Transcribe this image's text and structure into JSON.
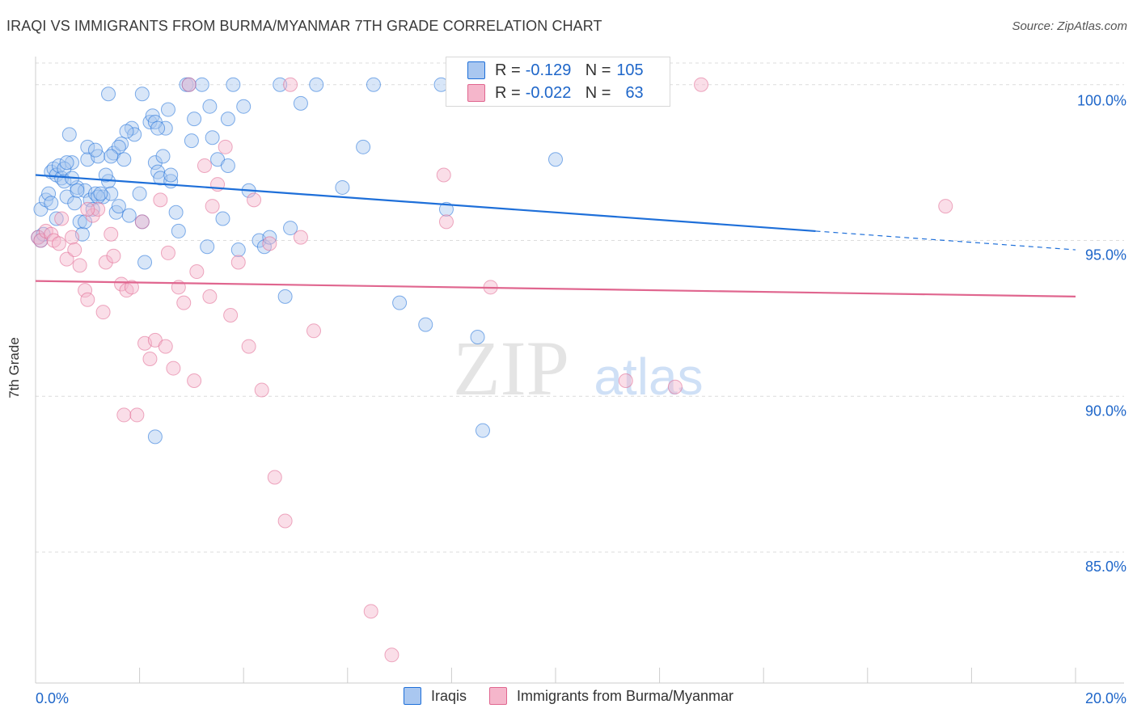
{
  "title": "IRAQI VS IMMIGRANTS FROM BURMA/MYANMAR 7TH GRADE CORRELATION CHART",
  "source": "Source: ZipAtlas.com",
  "watermark": {
    "zip": "ZIP",
    "atlas": "atlas"
  },
  "colors": {
    "blue": "#1e6fd9",
    "blue_fill": "#a9c7f0",
    "pink": "#e0668f",
    "pink_fill": "#f5b6cb",
    "value_text": "#1e66c9",
    "grid": "#dcdcdc"
  },
  "legend": {
    "rows": [
      {
        "r_label": "R =",
        "r_value": "-0.129",
        "n_label": "N =",
        "n_value": "105"
      },
      {
        "r_label": "R =",
        "r_value": "-0.022",
        "n_label": "N =",
        "n_value": "63"
      }
    ]
  },
  "chart_data": {
    "type": "scatter",
    "title": "IRAQI VS IMMIGRANTS FROM BURMA/MYANMAR 7TH GRADE CORRELATION CHART",
    "xlabel": "",
    "ylabel": "7th Grade",
    "xlim": [
      0,
      20
    ],
    "ylim": [
      80.8,
      100.9
    ],
    "x_tick_labels": [
      "0.0%",
      "20.0%"
    ],
    "y_ticks": [
      85,
      90,
      95,
      100
    ],
    "y_tick_labels": [
      "85.0%",
      "90.0%",
      "95.0%",
      "100.0%"
    ],
    "grid": true,
    "legend_position": "bottom",
    "series": [
      {
        "name": "Iraqis",
        "color": "#1e6fd9",
        "r": -0.129,
        "n": 105,
        "trend": {
          "x0": 0.0,
          "y0": 97.1,
          "x1": 15.0,
          "y1": 95.3,
          "dashed_to_x": 20.0,
          "dashed_y": 94.7
        },
        "points": [
          [
            0.05,
            95.1
          ],
          [
            0.1,
            95.0
          ],
          [
            0.15,
            95.2
          ],
          [
            0.1,
            96.0
          ],
          [
            0.2,
            96.3
          ],
          [
            0.25,
            96.5
          ],
          [
            0.3,
            97.2
          ],
          [
            0.35,
            97.3
          ],
          [
            0.4,
            97.1
          ],
          [
            0.45,
            97.4
          ],
          [
            0.5,
            97.0
          ],
          [
            0.55,
            96.9
          ],
          [
            0.6,
            96.4
          ],
          [
            0.7,
            97.5
          ],
          [
            0.75,
            96.2
          ],
          [
            0.8,
            96.7
          ],
          [
            0.85,
            95.6
          ],
          [
            0.9,
            95.2
          ],
          [
            0.95,
            96.6
          ],
          [
            1.0,
            97.6
          ],
          [
            1.05,
            96.3
          ],
          [
            1.1,
            96.0
          ],
          [
            1.15,
            96.5
          ],
          [
            1.2,
            97.7
          ],
          [
            1.3,
            96.4
          ],
          [
            1.4,
            96.9
          ],
          [
            1.45,
            96.5
          ],
          [
            1.5,
            97.8
          ],
          [
            1.55,
            95.9
          ],
          [
            1.6,
            96.1
          ],
          [
            1.7,
            97.6
          ],
          [
            1.8,
            95.8
          ],
          [
            1.85,
            98.6
          ],
          [
            1.9,
            98.4
          ],
          [
            2.0,
            96.5
          ],
          [
            2.05,
            95.6
          ],
          [
            2.1,
            94.3
          ],
          [
            2.2,
            98.8
          ],
          [
            2.3,
            97.5
          ],
          [
            2.35,
            97.2
          ],
          [
            2.4,
            97.0
          ],
          [
            2.5,
            98.6
          ],
          [
            2.55,
            99.2
          ],
          [
            2.6,
            96.9
          ],
          [
            2.7,
            95.9
          ],
          [
            2.75,
            95.3
          ],
          [
            2.9,
            100.0
          ],
          [
            3.0,
            98.2
          ],
          [
            3.05,
            98.9
          ],
          [
            3.2,
            100.0
          ],
          [
            3.3,
            94.8
          ],
          [
            3.35,
            99.3
          ],
          [
            3.4,
            98.3
          ],
          [
            3.5,
            97.6
          ],
          [
            3.6,
            95.7
          ],
          [
            3.7,
            98.9
          ],
          [
            3.8,
            100.0
          ],
          [
            3.9,
            94.7
          ],
          [
            4.0,
            99.3
          ],
          [
            4.1,
            96.6
          ],
          [
            4.3,
            95.0
          ],
          [
            4.4,
            94.8
          ],
          [
            4.5,
            95.1
          ],
          [
            4.7,
            100.0
          ],
          [
            4.8,
            93.2
          ],
          [
            4.9,
            95.4
          ],
          [
            5.1,
            99.4
          ],
          [
            5.4,
            100.0
          ],
          [
            5.9,
            96.7
          ],
          [
            6.3,
            98.0
          ],
          [
            6.5,
            100.0
          ],
          [
            7.0,
            93.0
          ],
          [
            7.5,
            92.3
          ],
          [
            7.8,
            100.0
          ],
          [
            7.9,
            96.0
          ],
          [
            8.5,
            91.9
          ],
          [
            8.6,
            88.9
          ],
          [
            10.0,
            97.6
          ],
          [
            0.65,
            98.4
          ],
          [
            0.55,
            97.3
          ],
          [
            1.35,
            97.1
          ],
          [
            1.0,
            98.0
          ],
          [
            1.65,
            98.1
          ],
          [
            2.45,
            97.7
          ],
          [
            2.6,
            97.1
          ],
          [
            3.7,
            97.4
          ],
          [
            2.05,
            99.7
          ],
          [
            1.4,
            99.7
          ],
          [
            2.95,
            100.0
          ],
          [
            0.8,
            96.6
          ],
          [
            1.2,
            96.4
          ],
          [
            0.3,
            96.2
          ],
          [
            0.4,
            95.7
          ],
          [
            0.95,
            95.6
          ],
          [
            1.25,
            96.5
          ],
          [
            1.6,
            98.0
          ],
          [
            1.75,
            98.5
          ],
          [
            2.25,
            99.0
          ],
          [
            0.6,
            97.5
          ],
          [
            0.7,
            97.0
          ],
          [
            1.15,
            97.9
          ],
          [
            1.45,
            97.7
          ],
          [
            2.3,
            98.8
          ],
          [
            2.35,
            98.6
          ],
          [
            2.3,
            88.7
          ]
        ]
      },
      {
        "name": "Immigrants from Burma/Myanmar",
        "color": "#e0668f",
        "r": -0.022,
        "n": 63,
        "trend": {
          "x0": 0.0,
          "y0": 93.7,
          "x1": 20.0,
          "y1": 93.2
        },
        "points": [
          [
            0.05,
            95.1
          ],
          [
            0.1,
            95.0
          ],
          [
            0.2,
            95.3
          ],
          [
            0.3,
            95.2
          ],
          [
            0.35,
            95.0
          ],
          [
            0.45,
            94.9
          ],
          [
            0.5,
            95.7
          ],
          [
            0.6,
            94.4
          ],
          [
            0.7,
            95.1
          ],
          [
            0.75,
            94.7
          ],
          [
            0.85,
            94.2
          ],
          [
            0.95,
            93.4
          ],
          [
            1.0,
            93.1
          ],
          [
            1.1,
            95.8
          ],
          [
            1.2,
            96.0
          ],
          [
            1.3,
            92.7
          ],
          [
            1.35,
            94.3
          ],
          [
            1.45,
            95.2
          ],
          [
            1.5,
            94.5
          ],
          [
            1.65,
            93.6
          ],
          [
            1.7,
            89.4
          ],
          [
            1.75,
            93.4
          ],
          [
            1.85,
            93.5
          ],
          [
            1.95,
            89.4
          ],
          [
            2.05,
            95.6
          ],
          [
            2.1,
            91.7
          ],
          [
            2.2,
            91.2
          ],
          [
            2.3,
            91.8
          ],
          [
            2.4,
            96.3
          ],
          [
            2.5,
            91.6
          ],
          [
            2.55,
            94.6
          ],
          [
            2.65,
            90.9
          ],
          [
            2.75,
            93.5
          ],
          [
            2.85,
            93.0
          ],
          [
            2.95,
            100.0
          ],
          [
            3.05,
            90.5
          ],
          [
            3.1,
            94.0
          ],
          [
            3.25,
            97.4
          ],
          [
            3.35,
            93.2
          ],
          [
            3.4,
            96.1
          ],
          [
            3.5,
            96.8
          ],
          [
            3.65,
            98.0
          ],
          [
            3.75,
            92.6
          ],
          [
            3.9,
            94.3
          ],
          [
            4.1,
            91.6
          ],
          [
            4.2,
            96.3
          ],
          [
            4.35,
            90.2
          ],
          [
            4.5,
            94.9
          ],
          [
            4.6,
            87.4
          ],
          [
            4.8,
            86.0
          ],
          [
            4.9,
            100.0
          ],
          [
            5.1,
            95.1
          ],
          [
            5.35,
            92.1
          ],
          [
            6.45,
            83.1
          ],
          [
            6.85,
            81.7
          ],
          [
            7.85,
            97.1
          ],
          [
            7.9,
            95.6
          ],
          [
            8.75,
            93.5
          ],
          [
            11.35,
            90.5
          ],
          [
            12.3,
            90.3
          ],
          [
            12.8,
            100.0
          ],
          [
            17.5,
            96.1
          ],
          [
            1.0,
            96.0
          ]
        ]
      }
    ]
  },
  "bottom_legend": {
    "items": [
      {
        "label": "Iraqis"
      },
      {
        "label": "Immigrants from Burma/Myanmar"
      }
    ]
  }
}
